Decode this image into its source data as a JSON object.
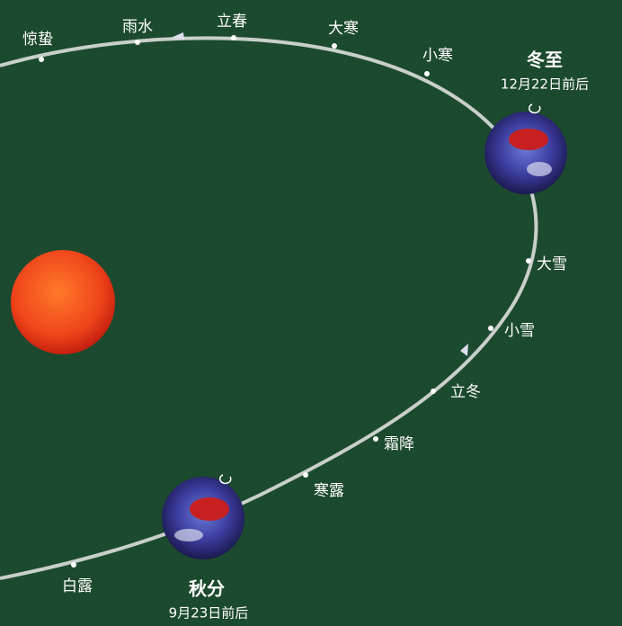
{
  "terms": [
    {
      "label": "惊蛰"
    },
    {
      "label": "雨水"
    },
    {
      "label": "立春"
    },
    {
      "label": "大寒"
    },
    {
      "label": "小寒"
    },
    {
      "label": "冬至",
      "date": "12月22日前后"
    },
    {
      "label": "大雪"
    },
    {
      "label": "小雪"
    },
    {
      "label": "立冬"
    },
    {
      "label": "霜降"
    },
    {
      "label": "寒露"
    },
    {
      "label": "秋分",
      "date": "9月23日前后"
    },
    {
      "label": "白露"
    }
  ]
}
